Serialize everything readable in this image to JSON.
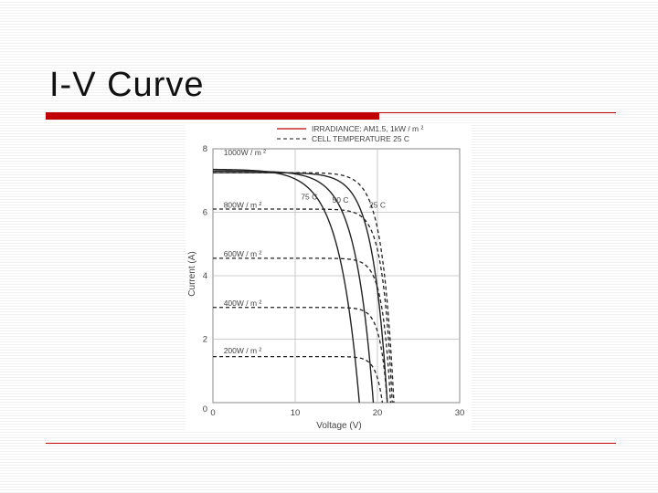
{
  "slide": {
    "title": "I-V Curve"
  },
  "colors": {
    "accent": "#c00000"
  },
  "chart_data": {
    "type": "line",
    "xlabel": "Voltage (V)",
    "ylabel": "Current (A)",
    "xlim": [
      0,
      30
    ],
    "ylim": [
      0,
      8
    ],
    "x_ticks": [
      "0",
      "10",
      "20",
      "30"
    ],
    "y_ticks": [
      "2",
      "4",
      "6",
      "8"
    ],
    "grid": true,
    "legend": {
      "position": "top",
      "entries": [
        {
          "label": "IRRADIANCE: AM1.5, 1kW / m ²",
          "style": "solid",
          "color": "#c00000"
        },
        {
          "label": "CELL TEMPERATURE 25 C",
          "style": "dashed",
          "color": "#444444"
        }
      ]
    },
    "annotations": {
      "irradiance": [
        "1000W / m ²",
        "800W / m ²",
        "600W / m ²",
        "400W / m ²",
        "200W / m ²"
      ],
      "temperature": [
        "75 C",
        "50 C",
        "25 C"
      ]
    },
    "series": [
      {
        "name": "1000W / m ²",
        "group": "irradiance",
        "style": "dashed",
        "isc": 7.25,
        "knee_v": 15.5,
        "voc": 22.0
      },
      {
        "name": "800W / m ²",
        "group": "irradiance",
        "style": "dashed",
        "isc": 6.1,
        "knee_v": 16.5,
        "voc": 21.8
      },
      {
        "name": "600W / m ²",
        "group": "irradiance",
        "style": "dashed",
        "isc": 4.55,
        "knee_v": 17.0,
        "voc": 21.6
      },
      {
        "name": "400W / m ²",
        "group": "irradiance",
        "style": "dashed",
        "isc": 3.0,
        "knee_v": 17.2,
        "voc": 21.2
      },
      {
        "name": "200W / m ²",
        "group": "irradiance",
        "style": "dashed",
        "isc": 1.45,
        "knee_v": 17.0,
        "voc": 20.6
      },
      {
        "name": "75 C",
        "group": "temperature",
        "style": "solid",
        "isc": 7.35,
        "knee_v": 6.5,
        "voc": 17.8
      },
      {
        "name": "50 C",
        "group": "temperature",
        "style": "solid",
        "isc": 7.3,
        "knee_v": 9.5,
        "voc": 19.5
      },
      {
        "name": "25 C",
        "group": "temperature",
        "style": "solid",
        "isc": 7.25,
        "knee_v": 13.0,
        "voc": 21.2
      }
    ]
  }
}
